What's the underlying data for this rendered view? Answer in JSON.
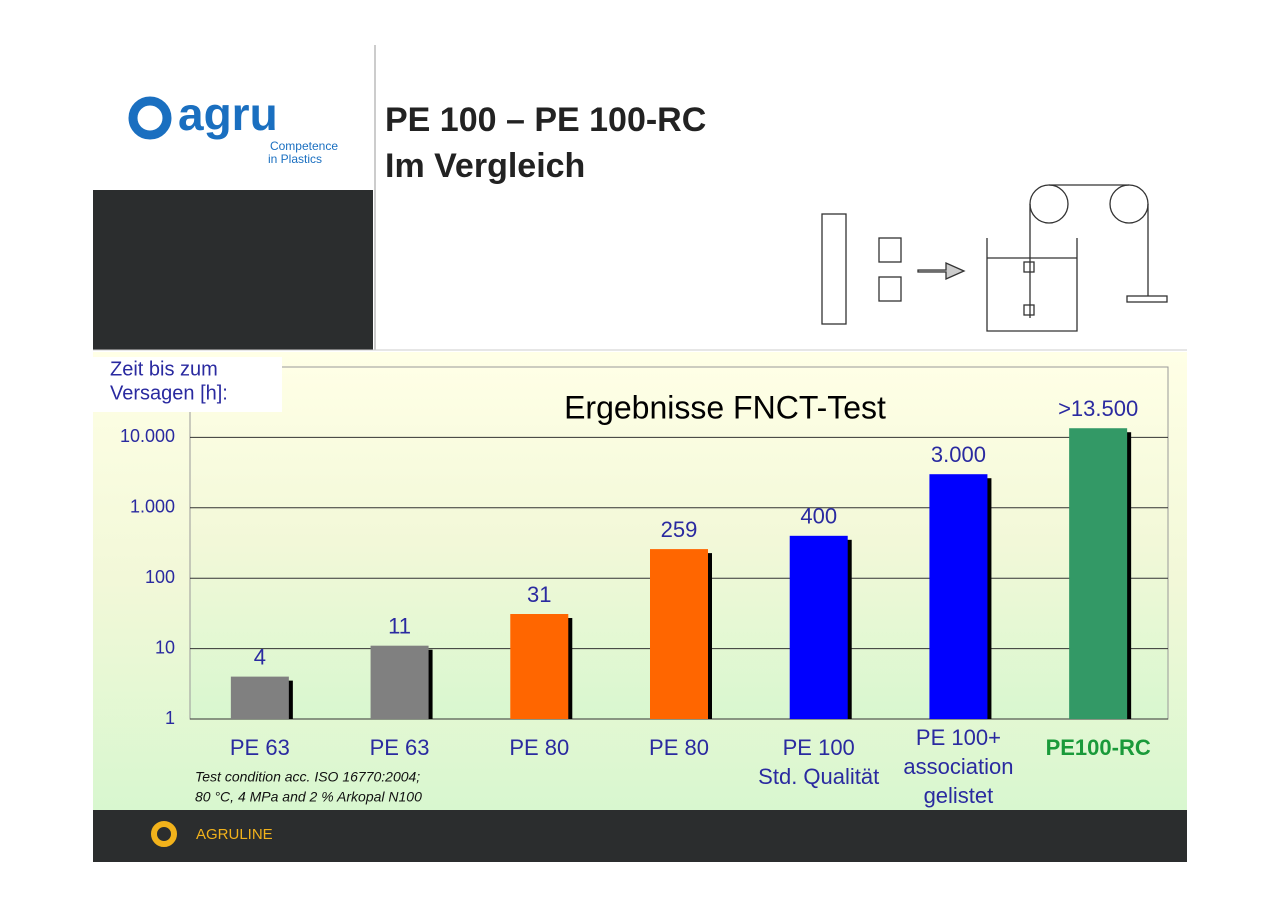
{
  "slide": {
    "title_lines": [
      "PE 100 – PE 100-RC",
      "Im Vergleich"
    ],
    "logo": {
      "name": "agru",
      "tagline": [
        "Competence",
        "in Plastics"
      ]
    },
    "footer": "AGRULINE"
  },
  "chart_data": {
    "type": "bar",
    "title": "Ergebnisse FNCT-Test",
    "y_label": [
      "Zeit bis zum",
      "Versagen [h]:"
    ],
    "log_scale": true,
    "categories": [
      [
        "PE 63"
      ],
      [
        "PE 63"
      ],
      [
        "PE 80"
      ],
      [
        "PE 80"
      ],
      [
        "PE 100",
        "Std. Qualität"
      ],
      [
        "PE 100+",
        "association",
        "gelistet"
      ],
      [
        "PE100-RC"
      ]
    ],
    "values": [
      4,
      11,
      31,
      259,
      400,
      3000,
      13500
    ],
    "value_labels": [
      "4",
      "11",
      "31",
      "259",
      "400",
      "3.000",
      ">13.500"
    ],
    "colors": [
      "#808080",
      "#808080",
      "#ff6600",
      "#ff6600",
      "#0000ff",
      "#0000ff",
      "#339966"
    ],
    "category_label_colors": [
      "#2a2aa0",
      "#2a2aa0",
      "#2a2aa0",
      "#2a2aa0",
      "#2a2aa0",
      "#2a2aa0",
      "#1a9a3a"
    ],
    "ylim": [
      1,
      100000
    ],
    "yticks": [
      1,
      10,
      100,
      {
        "value": 1000,
        "label": "1.000"
      },
      {
        "value": 10000,
        "label": "10.000"
      }
    ],
    "grid": true,
    "note": [
      "Test condition acc. ISO 16770:2004;",
      "80 °C, 4 MPa and 2 % Arkopal N100"
    ]
  }
}
